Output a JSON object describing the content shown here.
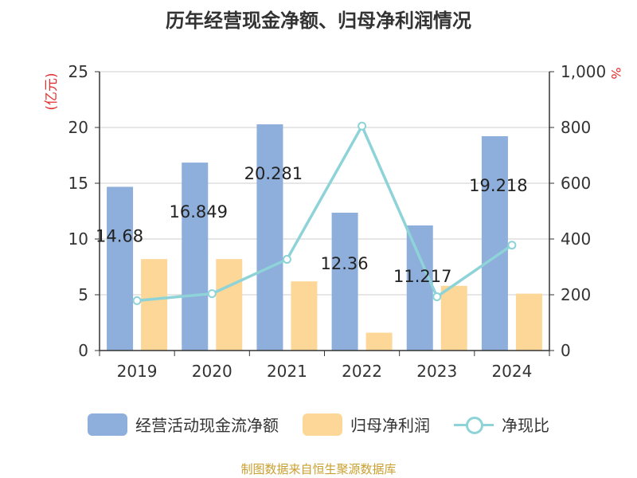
{
  "title": "历年经营现金净额、归母净利润情况",
  "source": "制图数据来自恒生聚源数据库",
  "chart_data": {
    "type": "bar",
    "categories": [
      "2019",
      "2020",
      "2021",
      "2022",
      "2023",
      "2024"
    ],
    "series": [
      {
        "name": "经营活动现金流净额",
        "type": "bar",
        "axis": "left",
        "color": "#8eaedb",
        "values": [
          14.68,
          16.849,
          20.281,
          12.36,
          11.217,
          19.218
        ]
      },
      {
        "name": "归母净利润",
        "type": "bar",
        "axis": "left",
        "color": "#fdd797",
        "values": [
          8.2,
          8.2,
          6.2,
          1.6,
          5.8,
          5.1
        ]
      },
      {
        "name": "净现比",
        "type": "line",
        "axis": "right",
        "color": "#8dd3d8",
        "values": [
          179,
          204,
          327,
          805,
          193,
          378
        ]
      }
    ],
    "data_labels": [
      "14.68",
      "16.849",
      "20.281",
      "12.36",
      "11.217",
      "19.218"
    ],
    "left_axis": {
      "label": "(亿元)",
      "ylim": [
        0,
        25
      ],
      "ticks": [
        "0",
        "5",
        "10",
        "15",
        "20",
        "25"
      ]
    },
    "right_axis": {
      "label": "%",
      "ylim": [
        0,
        1000
      ],
      "ticks": [
        "0",
        "200",
        "400",
        "600",
        "800",
        "1,000"
      ]
    },
    "grid": true,
    "legend": "bottom"
  },
  "colors": {
    "axis_label_red": "#e03030",
    "grid": "#cccccc",
    "axis": "#333333"
  }
}
